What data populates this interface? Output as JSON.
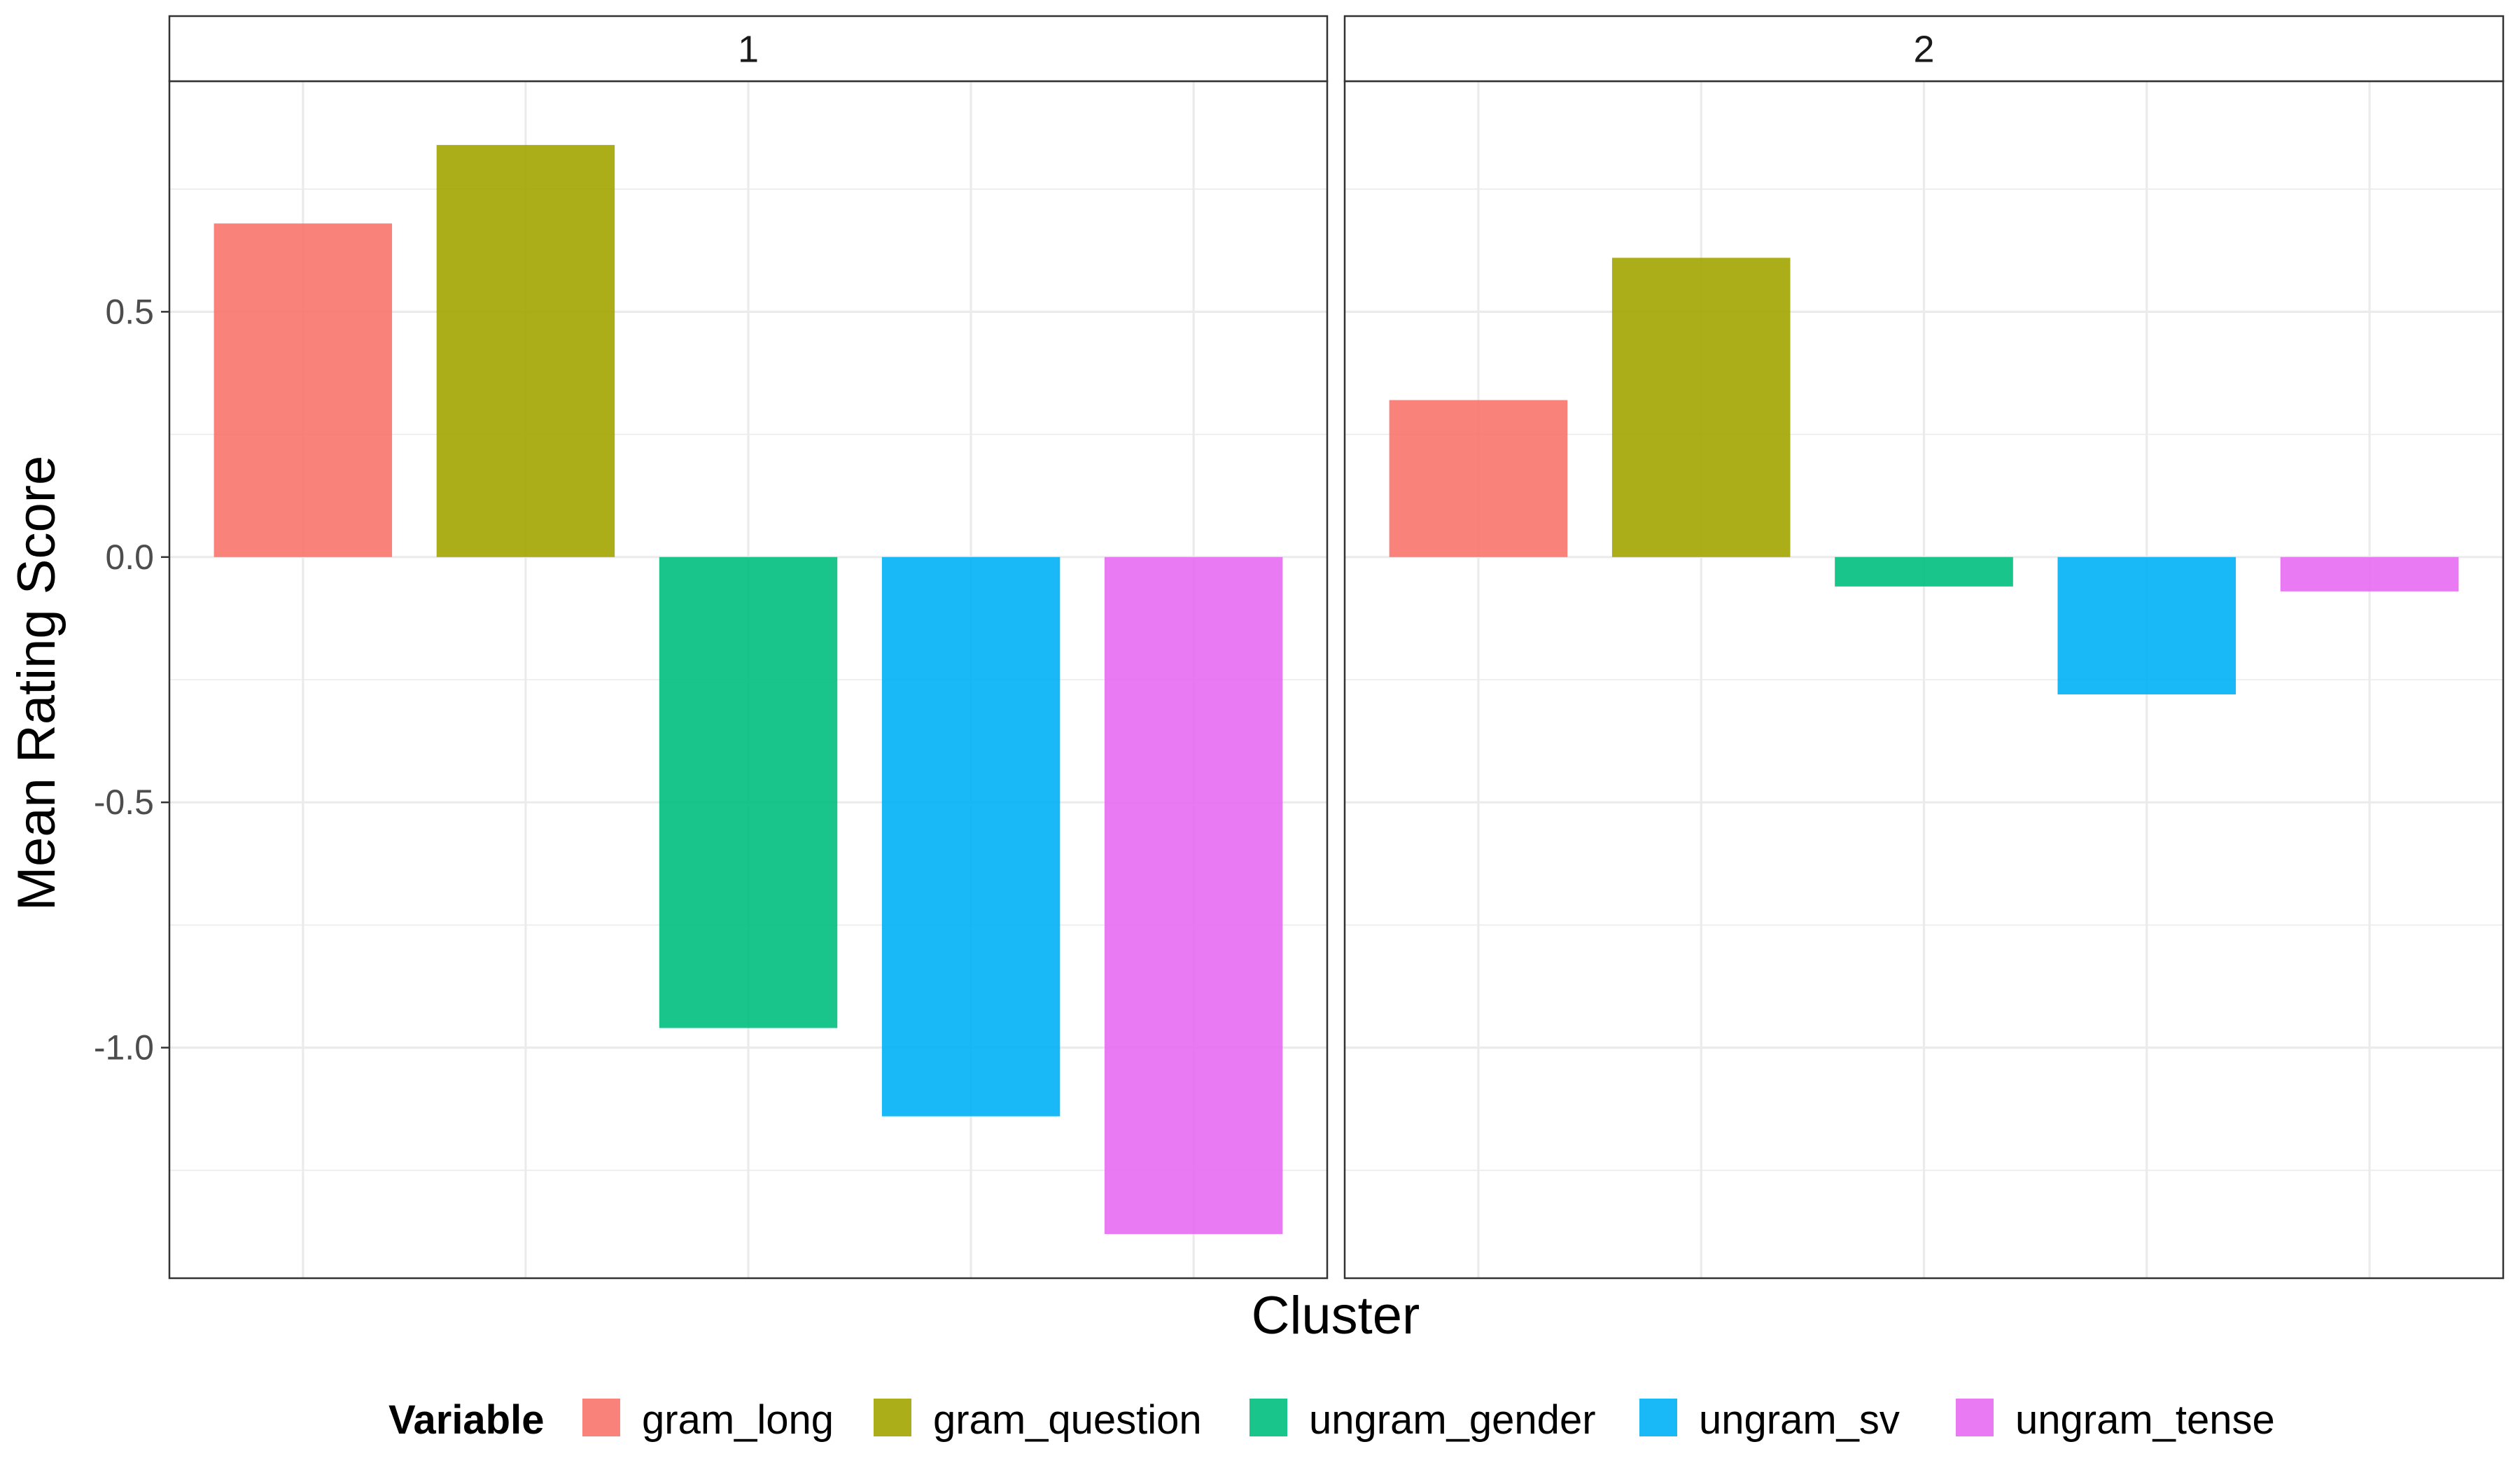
{
  "chart_data": {
    "type": "bar",
    "xlabel": "Cluster",
    "ylabel": "Mean Rating Score",
    "ylim": [
      -1.47,
      0.97
    ],
    "yticks": [
      0.5,
      0.0,
      -0.5,
      -1.0
    ],
    "ytick_labels": [
      "0.5",
      "0.0",
      "-0.5",
      "-1.0"
    ],
    "grid": true,
    "legend": {
      "title": "Variable",
      "position": "bottom"
    },
    "categories": [
      "gram_long",
      "gram_question",
      "ungram_gender",
      "ungram_sv",
      "ungram_tense"
    ],
    "colors": [
      "#F8766D",
      "#A3A500",
      "#00BF7D",
      "#00B0F6",
      "#E76BF3"
    ],
    "facets": [
      {
        "label": "1",
        "values": [
          0.68,
          0.84,
          -0.96,
          -1.14,
          -1.38
        ]
      },
      {
        "label": "2",
        "values": [
          0.32,
          0.61,
          -0.06,
          -0.28,
          -0.07
        ]
      }
    ]
  }
}
